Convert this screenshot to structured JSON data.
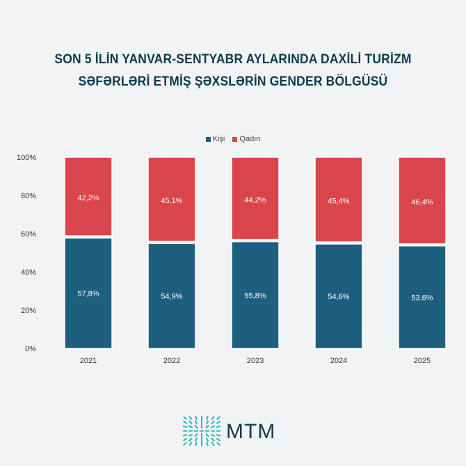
{
  "title_lines": [
    "SON 5 İLİN YANVAR-SENTYABR AYLARINDA DAXİLİ TURİZM",
    "SƏFƏRLƏRİ ETMİŞ ŞƏXSLƏRİN GENDER BÖLGÜSÜ"
  ],
  "chart_data": {
    "type": "bar",
    "stacked": true,
    "categories": [
      "2021",
      "2022",
      "2023",
      "2024",
      "2025"
    ],
    "series": [
      {
        "name": "Kişi",
        "values": [
          57.8,
          54.9,
          55.8,
          54.6,
          53.6
        ],
        "labels": [
          "57,8%",
          "54,9%",
          "55,8%",
          "54,6%",
          "53,6%"
        ],
        "color": "#1e5f80"
      },
      {
        "name": "Qadın",
        "values": [
          42.2,
          45.1,
          44.2,
          45.4,
          46.4
        ],
        "labels": [
          "42,2%",
          "45,1%",
          "44,2%",
          "45,4%",
          "46,4%"
        ],
        "color": "#d9454b"
      }
    ],
    "ylim": [
      0,
      100
    ],
    "yticks": [
      "0%",
      "20%",
      "40%",
      "60%",
      "80%",
      "100%"
    ],
    "grid": false,
    "legend_position": "top"
  },
  "logo": {
    "text": "MTM",
    "color": "#2bb3b6"
  }
}
